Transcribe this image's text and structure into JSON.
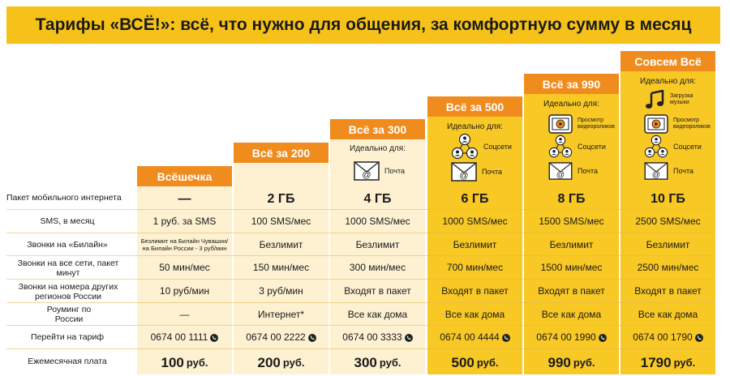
{
  "banner": {
    "title": "Тарифы «ВСЁ!»: всё, что нужно для общения, за комфортную сумму в месяц"
  },
  "ideal_label": "Идеально для:",
  "features": {
    "mail": "Почта",
    "social": "Соцсети",
    "video": "Просмотр видеороликов",
    "music": "Загрузка музыки"
  },
  "row_labels": [
    "Пакет мобильного интернета",
    "SMS, в месяц",
    "Звонки на «Билайн»",
    "Звонки на все сети, пакет минут",
    "Звонки на номера других регионов России",
    "Роуминг по России",
    "Перейти на тариф",
    "Ежемесячная плата"
  ],
  "plans": [
    {
      "name": "Всёшечка",
      "internet": "—",
      "sms": "1 руб. за SMS",
      "beeline": "Безлимит на Билайн Чувашии/ на Билайн России - 3 руб/мин",
      "minutes": "50 мин/мес",
      "regions": "10 руб/мин",
      "roaming": "—",
      "phone": "0674 00 1111",
      "price": "100",
      "currency": "руб."
    },
    {
      "name": "Всё за 200",
      "internet": "2 ГБ",
      "sms": "100 SMS/мес",
      "beeline": "Безлимит",
      "minutes": "150 мин/мес",
      "regions": "3 руб/мин",
      "roaming": "Интернет*",
      "phone": "0674 00 2222",
      "price": "200",
      "currency": "руб."
    },
    {
      "name": "Всё за 300",
      "internet": "4 ГБ",
      "sms": "1000 SMS/мес",
      "beeline": "Безлимит",
      "minutes": "300 мин/мес",
      "regions": "Входят в пакет",
      "roaming": "Все как дома",
      "phone": "0674 00 3333",
      "price": "300",
      "currency": "руб."
    },
    {
      "name": "Всё за 500",
      "internet": "6 ГБ",
      "sms": "1000 SMS/мес",
      "beeline": "Безлимит",
      "minutes": "700 мин/мес",
      "regions": "Входят в пакет",
      "roaming": "Все как дома",
      "phone": "0674 00 4444",
      "price": "500",
      "currency": "руб."
    },
    {
      "name": "Всё за 990",
      "internet": "8 ГБ",
      "sms": "1500 SMS/мес",
      "beeline": "Безлимит",
      "minutes": "1500 мин/мес",
      "regions": "Входят в пакет",
      "roaming": "Все как дома",
      "phone": "0674 00 1990",
      "price": "990",
      "currency": "руб."
    },
    {
      "name": "Совсем Всё",
      "internet": "10 ГБ",
      "sms": "2500 SMS/мес",
      "beeline": "Безлимит",
      "minutes": "2500 мин/мес",
      "regions": "Входят в пакет",
      "roaming": "Все как дома",
      "phone": "0674 00 1790",
      "price": "1790",
      "currency": "руб."
    }
  ],
  "colors": {
    "banner": "#f6c21a",
    "header": "#f08c1e",
    "light_column": "#fdf1d2",
    "yellow_column": "#f8c825"
  }
}
